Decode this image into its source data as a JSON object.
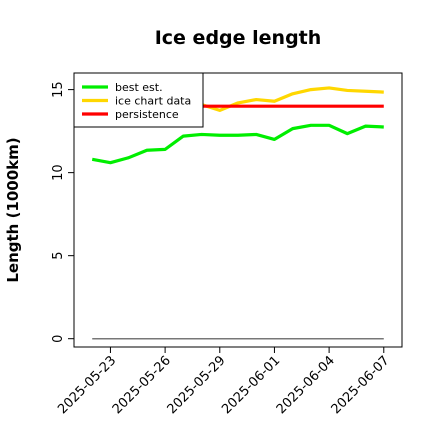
{
  "chart_data": {
    "type": "line",
    "title": "Ice edge length",
    "xlabel": "",
    "ylabel": "Length (1000km)",
    "x": [
      "2025-05-22",
      "2025-05-23",
      "2025-05-24",
      "2025-05-25",
      "2025-05-26",
      "2025-05-27",
      "2025-05-28",
      "2025-05-29",
      "2025-05-30",
      "2025-05-31",
      "2025-06-01",
      "2025-06-02",
      "2025-06-03",
      "2025-06-04",
      "2025-06-05",
      "2025-06-06",
      "2025-06-07"
    ],
    "xticks": [
      "2025-05-23",
      "2025-05-26",
      "2025-05-29",
      "2025-06-01",
      "2025-06-04",
      "2025-06-07"
    ],
    "yticks": [
      0,
      5,
      10,
      15
    ],
    "ylim": [
      -0.5,
      16
    ],
    "xlim": [
      "2025-05-21",
      "2025-06-08"
    ],
    "grid": false,
    "legend_position": "top-left",
    "series": [
      {
        "name": "best est.",
        "color": "#00ee00",
        "values": [
          10.8,
          10.6,
          10.9,
          11.35,
          11.4,
          12.2,
          12.3,
          12.25,
          12.25,
          12.3,
          12.0,
          12.65,
          12.85,
          12.85,
          12.35,
          12.8,
          12.75
        ]
      },
      {
        "name": "ice chart data",
        "color": "#ffd700",
        "values": [
          null,
          null,
          null,
          null,
          null,
          null,
          14.1,
          13.75,
          14.2,
          14.4,
          14.3,
          14.75,
          15.0,
          15.1,
          14.95,
          14.9,
          14.85
        ]
      },
      {
        "name": "persistence",
        "color": "#ff0000",
        "values": [
          null,
          null,
          null,
          null,
          null,
          null,
          14.0,
          14.0,
          14.0,
          14.0,
          14.0,
          14.0,
          14.0,
          14.0,
          14.0,
          14.0,
          14.0
        ]
      }
    ],
    "reference_line": {
      "y": 0,
      "x_from": "2025-05-22",
      "x_to": "2025-06-07",
      "color": "#777777"
    }
  }
}
